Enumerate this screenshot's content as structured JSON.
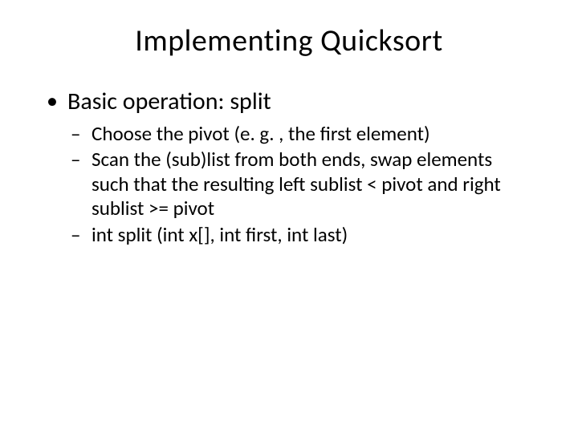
{
  "slide": {
    "title": "Implementing Quicksort",
    "bullets": [
      {
        "text": "Basic operation: split",
        "children": [
          "Choose the pivot (e. g. , the first element)",
          "Scan the (sub)list from both ends, swap elements such that the resulting left sublist < pivot and right sublist >= pivot",
          "int split (int x[], int first, int last)"
        ]
      }
    ]
  },
  "style": {
    "background_color": "#ffffff",
    "text_color": "#000000",
    "title_fontsize": 38,
    "level1_fontsize": 30,
    "level2_fontsize": 25,
    "font_family": "Calibri"
  }
}
